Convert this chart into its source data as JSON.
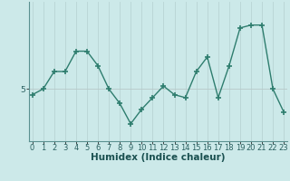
{
  "xlabel": "Humidex (Indice chaleur)",
  "x_values": [
    0,
    1,
    2,
    3,
    4,
    5,
    6,
    7,
    8,
    9,
    10,
    11,
    12,
    13,
    14,
    15,
    16,
    17,
    18,
    19,
    20,
    21,
    22,
    23
  ],
  "y_values": [
    4.8,
    5.0,
    5.6,
    5.6,
    6.3,
    6.3,
    5.8,
    5.0,
    4.5,
    3.8,
    4.3,
    4.7,
    5.1,
    4.8,
    4.7,
    5.6,
    6.1,
    4.7,
    5.8,
    7.1,
    7.2,
    7.2,
    5.0,
    4.2
  ],
  "line_color": "#2e7d6e",
  "marker_color": "#2e7d6e",
  "bg_color": "#cce9e9",
  "plot_bg_color": "#cce9e9",
  "grid_color_v": "#b8d4d4",
  "grid_color_h": "#b8c8c8",
  "yticks": [
    5
  ],
  "ylim": [
    3.2,
    8.0
  ],
  "xlim": [
    -0.3,
    23.3
  ],
  "tick_fontsize": 6.5,
  "label_fontsize": 7.5
}
